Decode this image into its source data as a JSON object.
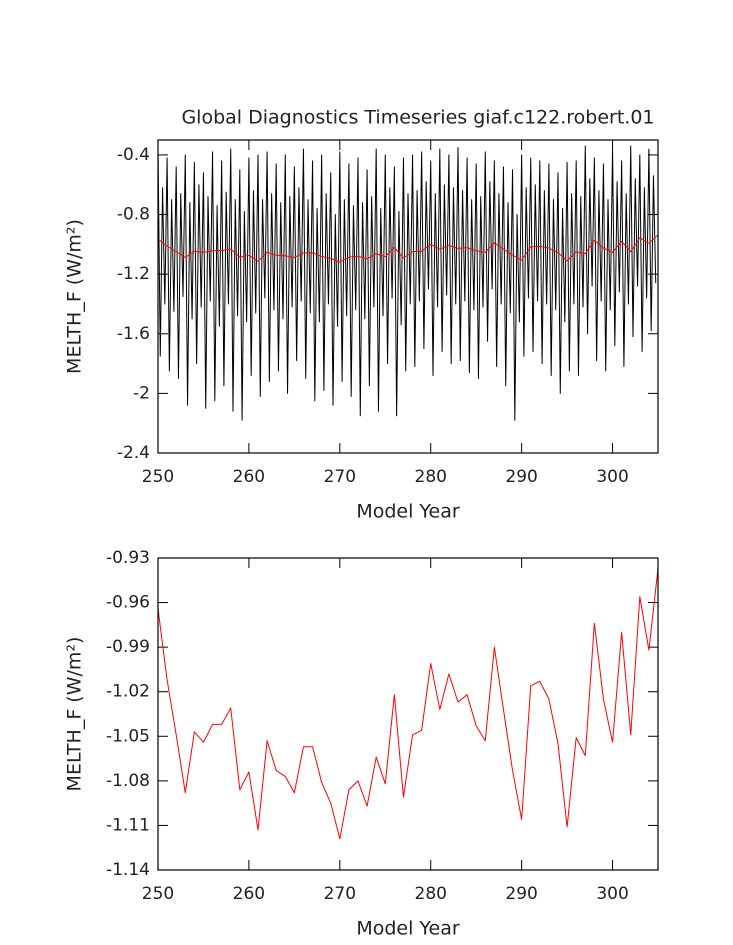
{
  "chart_data": [
    {
      "type": "line",
      "title": "Global Diagnostics Timeseries giaf.c122.robert.01",
      "x_label": "Model Year",
      "y_label": "MELTH_F (W/m²)",
      "xlim": [
        250,
        305
      ],
      "xticks": [
        250,
        260,
        270,
        280,
        290,
        300
      ],
      "ylim": [
        -2.4,
        -0.3
      ],
      "yticks": [
        -2.4,
        -2.0,
        -1.6,
        -1.2,
        -0.8,
        -0.4
      ],
      "series": [
        {
          "color": "#000000",
          "x": [
            250,
            250.25,
            250.5,
            250.75,
            251,
            251.25,
            251.5,
            251.75,
            252,
            252.25,
            252.5,
            252.75,
            253,
            253.25,
            253.5,
            253.75,
            254,
            254.25,
            254.5,
            254.75,
            255,
            255.25,
            255.5,
            255.75,
            256,
            256.25,
            256.5,
            256.75,
            257,
            257.25,
            257.5,
            257.75,
            258,
            258.25,
            258.5,
            258.75,
            259,
            259.25,
            259.5,
            259.75,
            260,
            260.25,
            260.5,
            260.75,
            261,
            261.25,
            261.5,
            261.75,
            262,
            262.25,
            262.5,
            262.75,
            263,
            263.25,
            263.5,
            263.75,
            264,
            264.25,
            264.5,
            264.75,
            265,
            265.25,
            265.5,
            265.75,
            266,
            266.25,
            266.5,
            266.75,
            267,
            267.25,
            267.5,
            267.75,
            268,
            268.25,
            268.5,
            268.75,
            269,
            269.25,
            269.5,
            269.75,
            270,
            270.25,
            270.5,
            270.75,
            271,
            271.25,
            271.5,
            271.75,
            272,
            272.25,
            272.5,
            272.75,
            273,
            273.25,
            273.5,
            273.75,
            274,
            274.25,
            274.5,
            274.75,
            275,
            275.25,
            275.5,
            275.75,
            276,
            276.25,
            276.5,
            276.75,
            277,
            277.25,
            277.5,
            277.75,
            278,
            278.25,
            278.5,
            278.75,
            279,
            279.25,
            279.5,
            279.75,
            280,
            280.25,
            280.5,
            280.75,
            281,
            281.25,
            281.5,
            281.75,
            282,
            282.25,
            282.5,
            282.75,
            283,
            283.25,
            283.5,
            283.75,
            284,
            284.25,
            284.5,
            284.75,
            285,
            285.25,
            285.5,
            285.75,
            286,
            286.25,
            286.5,
            286.75,
            287,
            287.25,
            287.5,
            287.75,
            288,
            288.25,
            288.5,
            288.75,
            289,
            289.25,
            289.5,
            289.75,
            290,
            290.25,
            290.5,
            290.75,
            291,
            291.25,
            291.5,
            291.75,
            292,
            292.25,
            292.5,
            292.75,
            293,
            293.25,
            293.5,
            293.75,
            294,
            294.25,
            294.5,
            294.75,
            295,
            295.25,
            295.5,
            295.75,
            296,
            296.25,
            296.5,
            296.75,
            297,
            297.25,
            297.5,
            297.75,
            298,
            298.25,
            298.5,
            298.75,
            299,
            299.25,
            299.5,
            299.75,
            300,
            300.25,
            300.5,
            300.75,
            301,
            301.25,
            301.5,
            301.75,
            302,
            302.25,
            302.5,
            302.75,
            303,
            303.25,
            303.5,
            303.75,
            304,
            304.25,
            304.5,
            304.75
          ],
          "values": [
            -0.35,
            -1.75,
            -0.62,
            -1.4,
            -0.42,
            -1.85,
            -0.7,
            -1.45,
            -0.48,
            -1.9,
            -0.66,
            -1.35,
            -0.4,
            -2.08,
            -0.72,
            -1.5,
            -0.45,
            -1.8,
            -0.6,
            -1.42,
            -0.52,
            -2.1,
            -0.68,
            -1.38,
            -0.38,
            -2.05,
            -0.74,
            -1.55,
            -0.44,
            -1.95,
            -0.65,
            -1.4,
            -0.36,
            -2.12,
            -0.7,
            -1.48,
            -0.5,
            -2.18,
            -0.78,
            -1.52,
            -0.42,
            -1.88,
            -0.64,
            -1.46,
            -0.4,
            -2.02,
            -0.7,
            -1.36,
            -0.38,
            -1.92,
            -0.66,
            -1.44,
            -0.46,
            -1.85,
            -0.72,
            -1.5,
            -0.4,
            -2.0,
            -0.68,
            -1.42,
            -0.48,
            -1.78,
            -0.62,
            -1.38,
            -0.36,
            -1.9,
            -0.7,
            -1.46,
            -0.44,
            -2.05,
            -0.76,
            -1.52,
            -0.4,
            -1.98,
            -0.66,
            -1.4,
            -0.52,
            -2.08,
            -0.8,
            -1.55,
            -0.38,
            -1.92,
            -0.7,
            -1.48,
            -0.46,
            -2.02,
            -0.74,
            -1.44,
            -0.42,
            -2.15,
            -0.72,
            -1.5,
            -0.5,
            -1.95,
            -0.68,
            -1.42,
            -0.36,
            -2.12,
            -0.76,
            -1.48,
            -0.4,
            -1.8,
            -0.62,
            -1.36,
            -0.48,
            -2.15,
            -0.78,
            -1.54,
            -0.42,
            -1.85,
            -0.66,
            -1.4,
            -0.4,
            -1.82,
            -0.64,
            -1.38,
            -0.38,
            -1.7,
            -0.58,
            -1.3,
            -0.44,
            -1.88,
            -0.66,
            -1.42,
            -0.36,
            -1.72,
            -0.6,
            -1.34,
            -0.4,
            -1.8,
            -0.62,
            -1.4,
            -0.35,
            -1.78,
            -0.64,
            -1.38,
            -0.42,
            -1.86,
            -0.7,
            -1.44,
            -0.46,
            -1.9,
            -0.68,
            -1.42,
            -0.38,
            -1.65,
            -0.58,
            -1.3,
            -0.44,
            -1.82,
            -0.66,
            -1.4,
            -0.48,
            -1.95,
            -0.72,
            -1.46,
            -0.5,
            -2.18,
            -0.8,
            -1.52,
            -0.4,
            -1.75,
            -0.62,
            -1.36,
            -0.42,
            -1.72,
            -0.6,
            -1.38,
            -0.44,
            -1.8,
            -0.64,
            -1.4,
            -0.46,
            -1.88,
            -0.7,
            -1.44,
            -0.52,
            -2.0,
            -0.76,
            -1.52,
            -0.45,
            -1.85,
            -0.66,
            -1.4,
            -0.44,
            -1.88,
            -0.68,
            -1.42,
            -0.34,
            -1.6,
            -0.56,
            -1.28,
            -0.42,
            -1.78,
            -0.64,
            -1.38,
            -0.46,
            -1.85,
            -0.7,
            -1.44,
            -0.36,
            -1.68,
            -0.58,
            -1.32,
            -0.44,
            -1.82,
            -0.66,
            -1.4,
            -0.34,
            -1.62,
            -0.56,
            -1.28,
            -0.4,
            -1.72,
            -0.62,
            -1.36,
            -0.36,
            -1.58,
            -0.54,
            -1.26
          ]
        },
        {
          "color": "#ff0000",
          "x": [
            250,
            251,
            252,
            253,
            254,
            255,
            256,
            257,
            258,
            259,
            260,
            261,
            262,
            263,
            264,
            265,
            266,
            267,
            268,
            269,
            270,
            271,
            272,
            273,
            274,
            275,
            276,
            277,
            278,
            279,
            280,
            281,
            282,
            283,
            284,
            285,
            286,
            287,
            288,
            289,
            290,
            291,
            292,
            293,
            294,
            295,
            296,
            297,
            298,
            299,
            300,
            301,
            302,
            303,
            304,
            305
          ],
          "values": [
            -0.964,
            -1.012,
            -1.049,
            -1.088,
            -1.047,
            -1.054,
            -1.042,
            -1.042,
            -1.031,
            -1.086,
            -1.074,
            -1.113,
            -1.053,
            -1.073,
            -1.077,
            -1.088,
            -1.057,
            -1.057,
            -1.081,
            -1.095,
            -1.119,
            -1.086,
            -1.08,
            -1.097,
            -1.064,
            -1.082,
            -1.022,
            -1.091,
            -1.049,
            -1.046,
            -1.001,
            -1.032,
            -1.008,
            -1.027,
            -1.022,
            -1.043,
            -1.053,
            -0.99,
            -1.032,
            -1.073,
            -1.106,
            -1.016,
            -1.013,
            -1.025,
            -1.055,
            -1.111,
            -1.051,
            -1.063,
            -0.974,
            -1.025,
            -1.054,
            -0.98,
            -1.049,
            -0.956,
            -0.992,
            -0.937
          ]
        }
      ]
    },
    {
      "type": "line",
      "x_label": "Model Year",
      "y_label": "MELTH_F (W/m²)",
      "xlim": [
        250,
        305
      ],
      "xticks": [
        250,
        260,
        270,
        280,
        290,
        300
      ],
      "ylim": [
        -1.14,
        -0.93
      ],
      "yticks": [
        -1.14,
        -1.11,
        -1.08,
        -1.05,
        -1.02,
        -0.99,
        -0.96,
        -0.93
      ],
      "series": [
        {
          "color": "#ff0000",
          "x": [
            250,
            251,
            252,
            253,
            254,
            255,
            256,
            257,
            258,
            259,
            260,
            261,
            262,
            263,
            264,
            265,
            266,
            267,
            268,
            269,
            270,
            271,
            272,
            273,
            274,
            275,
            276,
            277,
            278,
            279,
            280,
            281,
            282,
            283,
            284,
            285,
            286,
            287,
            288,
            289,
            290,
            291,
            292,
            293,
            294,
            295,
            296,
            297,
            298,
            299,
            300,
            301,
            302,
            303,
            304,
            305
          ],
          "values": [
            -0.964,
            -1.012,
            -1.049,
            -1.088,
            -1.047,
            -1.054,
            -1.042,
            -1.042,
            -1.031,
            -1.086,
            -1.074,
            -1.113,
            -1.053,
            -1.073,
            -1.077,
            -1.088,
            -1.057,
            -1.057,
            -1.081,
            -1.095,
            -1.119,
            -1.086,
            -1.08,
            -1.097,
            -1.064,
            -1.082,
            -1.022,
            -1.091,
            -1.049,
            -1.046,
            -1.001,
            -1.032,
            -1.008,
            -1.027,
            -1.022,
            -1.043,
            -1.053,
            -0.99,
            -1.032,
            -1.073,
            -1.106,
            -1.016,
            -1.013,
            -1.025,
            -1.055,
            -1.111,
            -1.051,
            -1.063,
            -0.974,
            -1.025,
            -1.054,
            -0.98,
            -1.049,
            -0.956,
            -0.992,
            -0.937
          ]
        }
      ]
    }
  ]
}
